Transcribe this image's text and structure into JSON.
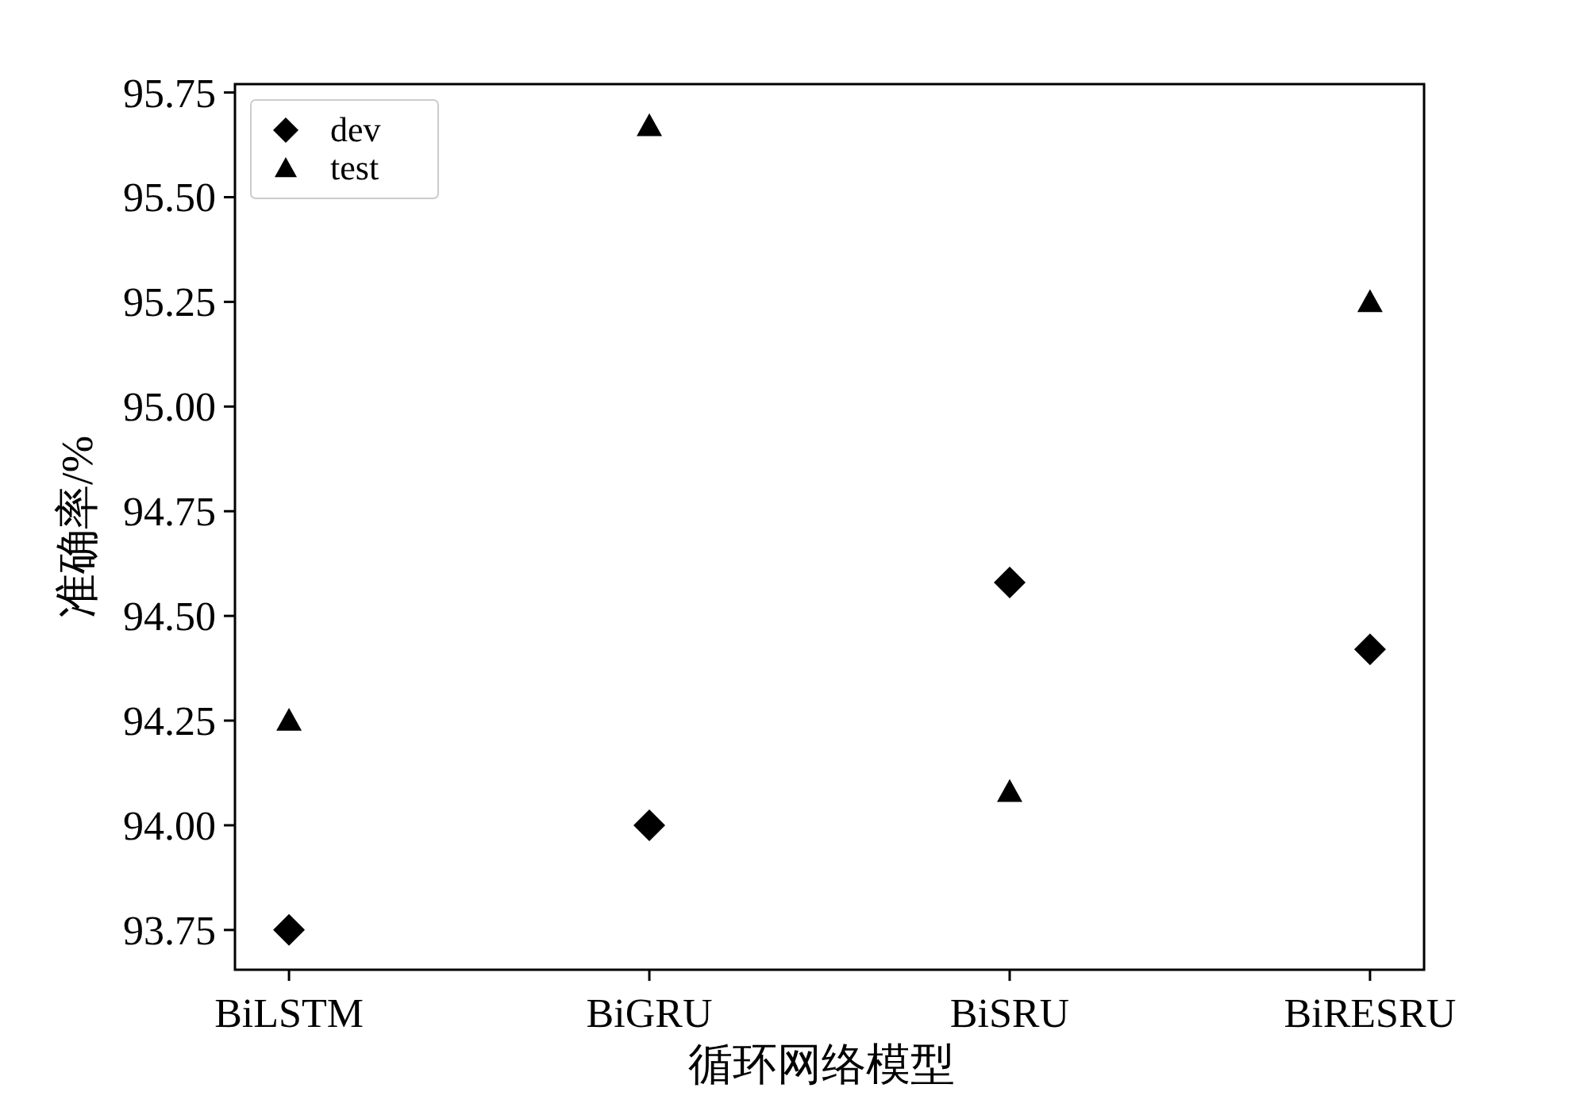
{
  "chart_data": {
    "type": "scatter",
    "xlabel": "循环网络模型",
    "ylabel": "准确率/%",
    "categories": [
      "BiLSTM",
      "BiGRU",
      "BiSRU",
      "BiRESRU"
    ],
    "series": [
      {
        "name": "dev",
        "color": "#000000",
        "marker": "diamond",
        "values": [
          93.75,
          94.0,
          94.58,
          94.42
        ]
      },
      {
        "name": "test",
        "color": "#000000",
        "marker": "triangle",
        "values": [
          94.25,
          95.67,
          94.08,
          95.25
        ]
      }
    ],
    "ylim": [
      93.655,
      95.77
    ],
    "yticks": [
      93.75,
      {
        "value": 94.0,
        "label": "94.00"
      },
      94.25,
      {
        "value": 94.5,
        "label": "94.50"
      },
      94.75,
      {
        "value": 95.0,
        "label": "95.00"
      },
      95.25,
      {
        "value": 95.5,
        "label": "95.50"
      },
      95.75
    ],
    "grid": false,
    "legend": "top left"
  }
}
